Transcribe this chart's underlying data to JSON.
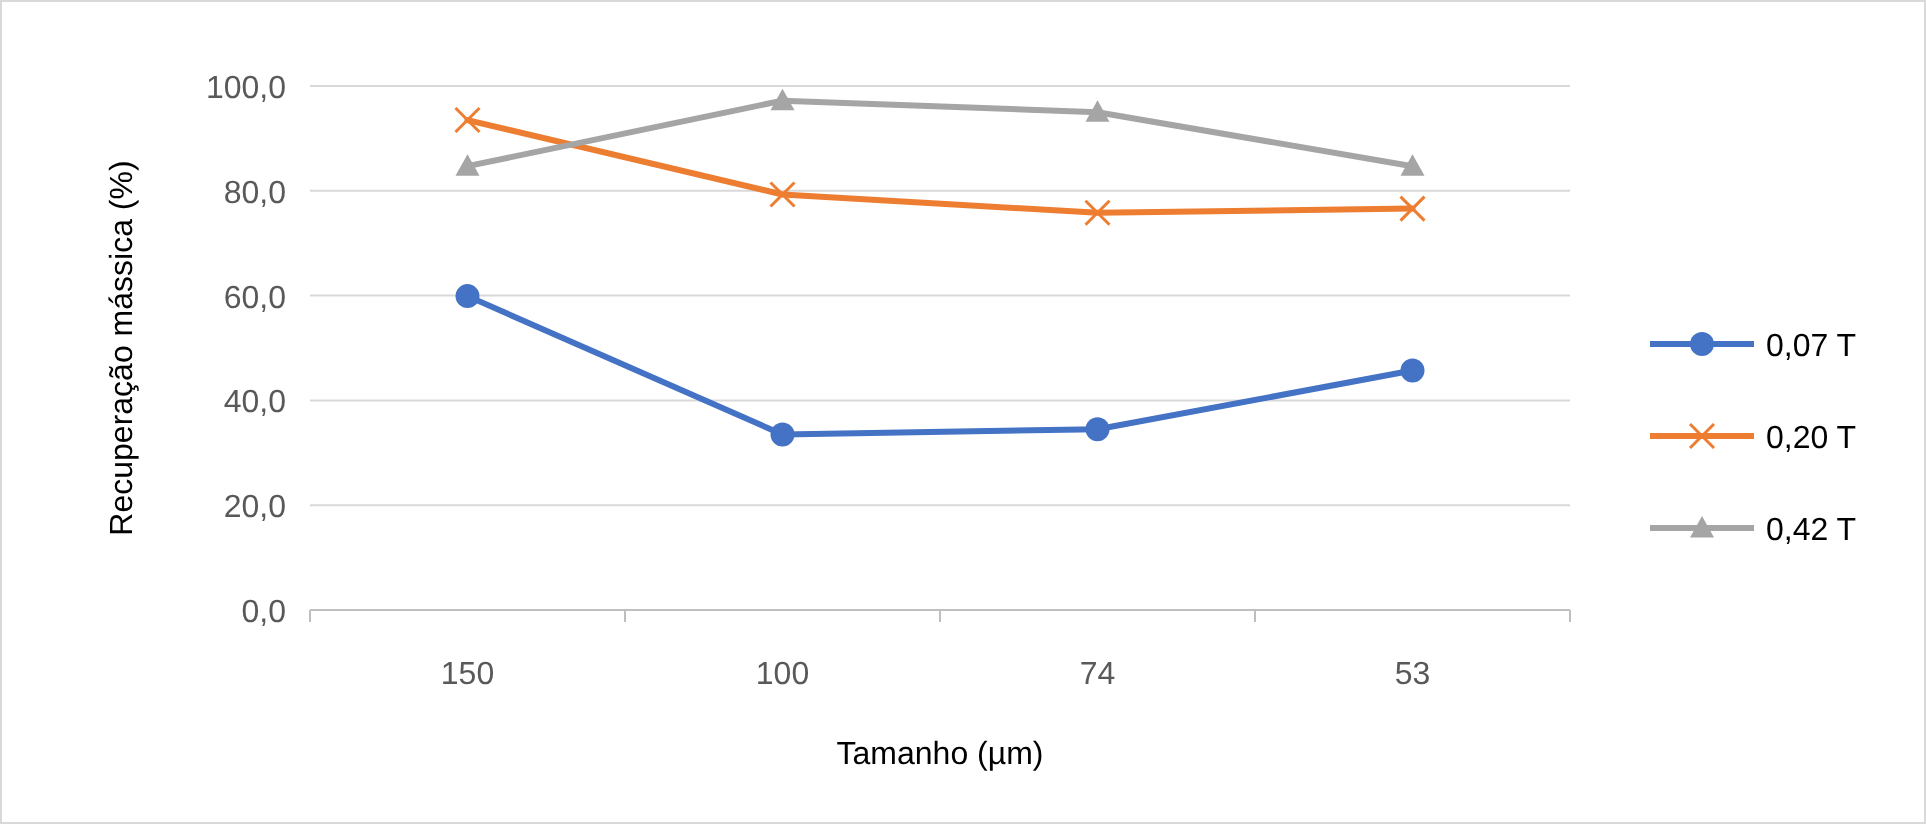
{
  "chart_data": {
    "type": "line",
    "xlabel": "Tamanho (µm)",
    "ylabel": "Recuperação mássica (%)",
    "categories": [
      "150",
      "100",
      "74",
      "53"
    ],
    "series": [
      {
        "name": "0,07 T",
        "color": "#4472c4",
        "marker": "circle",
        "values": [
          59.9,
          33.5,
          34.5,
          45.7
        ]
      },
      {
        "name": "0,20 T",
        "color": "#ed7d31",
        "marker": "cross",
        "values": [
          93.5,
          79.3,
          75.8,
          76.6
        ]
      },
      {
        "name": "0,42 T",
        "color": "#a5a5a5",
        "marker": "triangle",
        "values": [
          84.7,
          97.2,
          95.0,
          84.7
        ]
      }
    ],
    "ylim": [
      0,
      100
    ],
    "yticks": [
      {
        "value": 0,
        "label": "0,0"
      },
      {
        "value": 20,
        "label": "20,0"
      },
      {
        "value": 40,
        "label": "40,0"
      },
      {
        "value": 60,
        "label": "60,0"
      },
      {
        "value": 80,
        "label": "80,0"
      },
      {
        "value": 100,
        "label": "100,0"
      }
    ],
    "grid": "y",
    "legend": "right"
  }
}
